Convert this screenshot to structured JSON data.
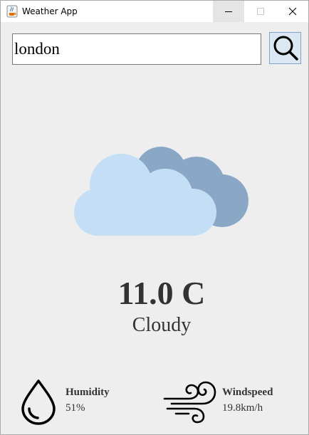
{
  "window": {
    "title": "Weather App",
    "icon": "java-coffee-icon",
    "controls": [
      "minimize-icon",
      "maximize-icon",
      "close-icon"
    ]
  },
  "search": {
    "value": "london",
    "button_icon": "search-icon"
  },
  "weather": {
    "image": "cloudy-icon",
    "temperature": "11.0 C",
    "condition": "Cloudy"
  },
  "humidity": {
    "icon": "water-drop-icon",
    "label": "Humidity",
    "value": "51%"
  },
  "windspeed": {
    "icon": "wind-icon",
    "label": "Windspeed",
    "value": "19.8km/h"
  },
  "colors": {
    "background": "#eeeeee",
    "text": "#333333",
    "cloud_front": "#c4dff5",
    "cloud_back": "#8aa8c6",
    "search_button_bg": "#dbe7f3",
    "search_button_border": "#7ea4cc"
  }
}
